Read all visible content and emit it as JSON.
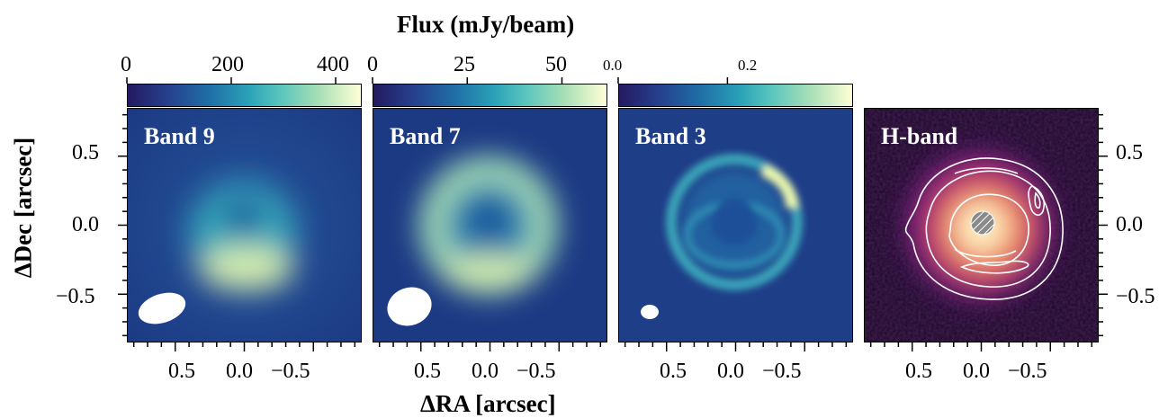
{
  "colorbar_title": "Flux (mJy/beam)",
  "colorbars": [
    {
      "ticks": [
        {
          "value": 0,
          "label": "0"
        },
        {
          "value": 200,
          "label": "200"
        },
        {
          "value": 400,
          "label": "400"
        }
      ],
      "vmax": 450
    },
    {
      "ticks": [
        {
          "value": 0,
          "label": "0"
        },
        {
          "value": 25,
          "label": "25"
        },
        {
          "value": 50,
          "label": "50"
        }
      ],
      "vmax": 62
    },
    {
      "ticks": [
        {
          "value": 0.0,
          "label": "0.0"
        },
        {
          "value": 0.2,
          "label": "0.2"
        }
      ],
      "vmax": 0.43
    }
  ],
  "panels": [
    {
      "label": "Band 9"
    },
    {
      "label": "Band 7"
    },
    {
      "label": "Band 3"
    },
    {
      "label": "H-band"
    }
  ],
  "axes": {
    "xlabel": "ΔRA [arcsec]",
    "ylabel": "ΔDec [arcsec]",
    "xticks": [
      {
        "value": 0.5,
        "label": "0.5"
      },
      {
        "value": 0.0,
        "label": "0.0"
      },
      {
        "value": -0.5,
        "label": "−0.5"
      }
    ],
    "yticks": [
      {
        "value": 0.5,
        "label": "0.5"
      },
      {
        "value": 0.0,
        "label": "0.0"
      },
      {
        "value": -0.5,
        "label": "−0.5"
      }
    ],
    "range": [
      0.85,
      -0.85
    ]
  },
  "colors": {
    "background_low": "#1c3a84",
    "ring_mid": "#3aa3b6",
    "ring_high": "#eef7b0",
    "hband_bg": "#14071f",
    "hband_core": "#fff2c4",
    "contour": "#ffffff"
  }
}
